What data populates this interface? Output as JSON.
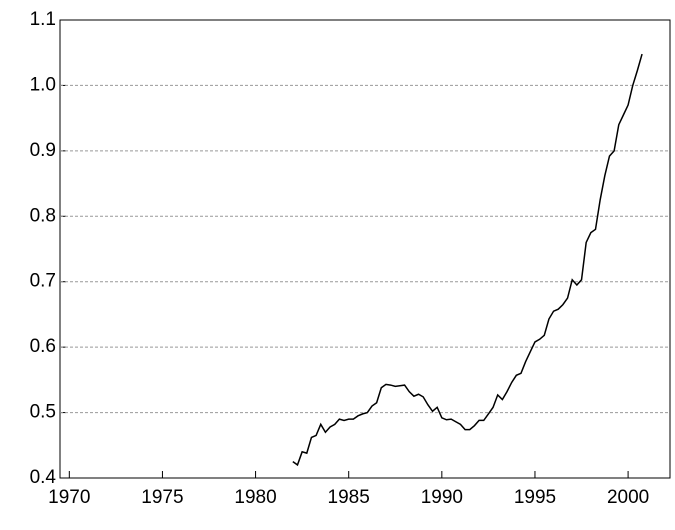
{
  "chart_data": {
    "type": "line",
    "x": [
      1982,
      1982.25,
      1982.5,
      1982.75,
      1983,
      1983.25,
      1983.5,
      1983.75,
      1984,
      1984.25,
      1984.5,
      1984.75,
      1985,
      1985.25,
      1985.5,
      1985.75,
      1986,
      1986.25,
      1986.5,
      1986.75,
      1987,
      1987.25,
      1987.5,
      1987.75,
      1988,
      1988.25,
      1988.5,
      1988.75,
      1989,
      1989.25,
      1989.5,
      1989.75,
      1990,
      1990.25,
      1990.5,
      1990.75,
      1991,
      1991.25,
      1991.5,
      1991.75,
      1992,
      1992.25,
      1992.5,
      1992.75,
      1993,
      1993.25,
      1993.5,
      1993.75,
      1994,
      1994.25,
      1994.5,
      1994.75,
      1995,
      1995.25,
      1995.5,
      1995.75,
      1996,
      1996.25,
      1996.5,
      1996.75,
      1997,
      1997.25,
      1997.5,
      1997.75,
      1998,
      1998.25,
      1998.5,
      1998.75,
      1999,
      1999.25,
      1999.5,
      1999.75,
      2000,
      2000.25,
      2000.5,
      2000.75
    ],
    "values": [
      0.425,
      0.42,
      0.44,
      0.438,
      0.462,
      0.465,
      0.482,
      0.47,
      0.478,
      0.482,
      0.49,
      0.488,
      0.49,
      0.49,
      0.495,
      0.498,
      0.5,
      0.51,
      0.515,
      0.538,
      0.543,
      0.542,
      0.54,
      0.541,
      0.542,
      0.532,
      0.525,
      0.528,
      0.524,
      0.512,
      0.502,
      0.508,
      0.492,
      0.489,
      0.49,
      0.486,
      0.482,
      0.474,
      0.474,
      0.48,
      0.488,
      0.488,
      0.498,
      0.508,
      0.527,
      0.52,
      0.532,
      0.546,
      0.557,
      0.56,
      0.578,
      0.593,
      0.608,
      0.612,
      0.618,
      0.643,
      0.655,
      0.658,
      0.665,
      0.675,
      0.703,
      0.695,
      0.703,
      0.76,
      0.775,
      0.78,
      0.825,
      0.862,
      0.892,
      0.9,
      0.94,
      0.955,
      0.97,
      1.0,
      1.023,
      1.048
    ],
    "color": "#000000",
    "xlim": [
      1969.5,
      2002.25
    ],
    "xticks": [
      1970,
      1975,
      1980,
      1985,
      1990,
      1995,
      2000
    ],
    "ylim": [
      0.4,
      1.1
    ],
    "yticks": [
      0.4,
      0.5,
      0.6,
      0.7,
      0.8,
      0.9,
      {
        "value": 1,
        "label": "1.0"
      },
      1.1
    ],
    "grid": true
  }
}
